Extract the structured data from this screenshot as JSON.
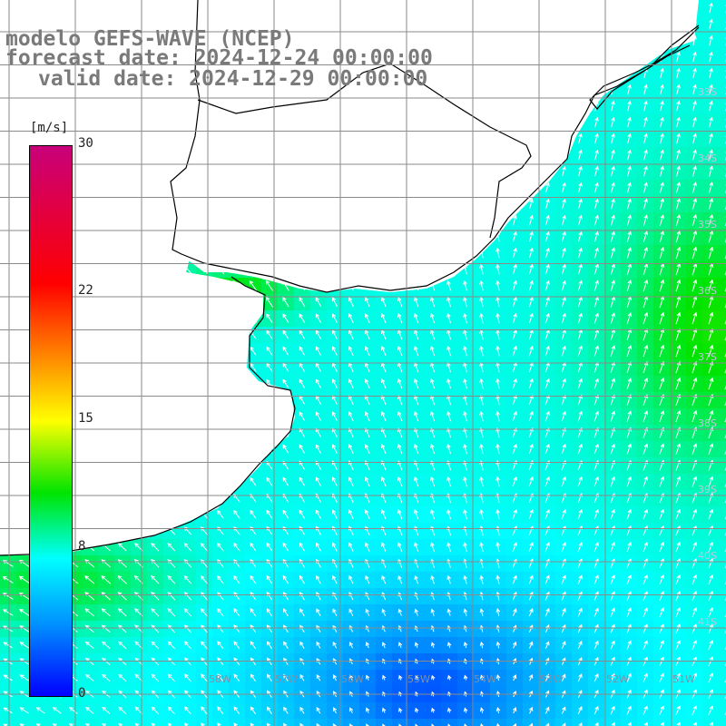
{
  "header": {
    "line1": "modelo GEFS-WAVE (NCEP)",
    "line2": "forecast date: 2024-12-24 00:00:00",
    "line3": "valid date: 2024-12-29 00:00:00"
  },
  "colorbar": {
    "unit": "[m/s]",
    "min": 0,
    "max": 30,
    "ticks": [
      {
        "value": 30,
        "label": "30"
      },
      {
        "value": 22,
        "label": "22"
      },
      {
        "value": 15,
        "label": "15"
      },
      {
        "value": 8,
        "label": "8"
      },
      {
        "value": 0,
        "label": "0"
      }
    ],
    "colors": [
      "#0000ff",
      "#0090ff",
      "#00ffff",
      "#00e400",
      "#ffff00",
      "#ff7a00",
      "#ff0000",
      "#c8007a"
    ]
  },
  "map": {
    "lat_labels": [
      "33S",
      "34S",
      "35S",
      "36S",
      "37S",
      "38S",
      "39S",
      "40S",
      "41S"
    ],
    "lon_labels": [
      "58W",
      "57W",
      "56W",
      "55W",
      "54W",
      "53W",
      "52W",
      "51W"
    ],
    "land_color": "#ffffff",
    "grid_color": "#808080",
    "coast_color": "#000000",
    "arrow_color": "#ffffff"
  }
}
